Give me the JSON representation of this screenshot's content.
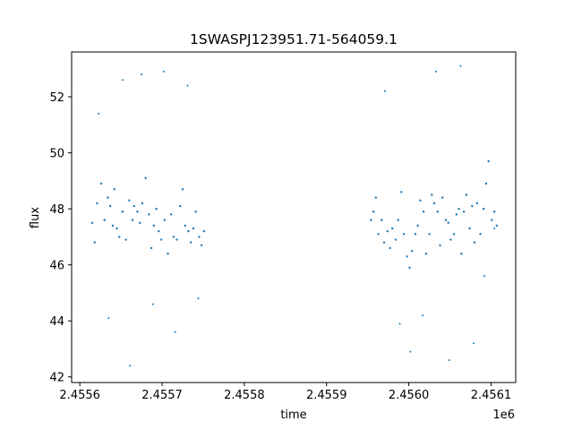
{
  "chart_data": {
    "type": "scatter",
    "title": "1SWASPJ123951.71-564059.1",
    "xlabel": "time",
    "ylabel": "flux",
    "x_offset_label": "1e6",
    "xlim": [
      2455590,
      2456130
    ],
    "ylim": [
      41.8,
      53.6
    ],
    "x_ticks": [
      2455600,
      2455700,
      2455800,
      2455900,
      2456000,
      2456100
    ],
    "x_tick_labels": [
      "2.4556",
      "2.4557",
      "2.4558",
      "2.4559",
      "2.4560",
      "2.4561"
    ],
    "y_ticks": [
      42,
      44,
      46,
      48,
      50,
      52
    ],
    "y_tick_labels": [
      "42",
      "44",
      "46",
      "48",
      "50",
      "52"
    ],
    "grid": false,
    "marker_color": "#1f77b4",
    "series": [
      {
        "name": "",
        "x": [
          2455615,
          2455618,
          2455621,
          2455626,
          2455630,
          2455634,
          2455637,
          2455640,
          2455642,
          2455645,
          2455648,
          2455652,
          2455656,
          2455660,
          2455664,
          2455666,
          2455670,
          2455673,
          2455676,
          2455680,
          2455684,
          2455687,
          2455690,
          2455693,
          2455696,
          2455699,
          2455703,
          2455707,
          2455711,
          2455714,
          2455718,
          2455722,
          2455725,
          2455728,
          2455732,
          2455735,
          2455738,
          2455741,
          2455745,
          2455748,
          2455751,
          2455954,
          2455957,
          2455960,
          2455963,
          2455967,
          2455970,
          2455974,
          2455977,
          2455980,
          2455984,
          2455987,
          2455991,
          2455994,
          2455998,
          2456001,
          2456004,
          2456008,
          2456011,
          2456014,
          2456018,
          2456021,
          2456025,
          2456028,
          2456031,
          2456035,
          2456038,
          2456041,
          2456045,
          2456048,
          2456051,
          2456055,
          2456058,
          2456061,
          2456064,
          2456067,
          2456070,
          2456074,
          2456077,
          2456080,
          2456083,
          2456087,
          2456091,
          2456094,
          2456097,
          2456101,
          2456104,
          2456107
        ],
        "y": [
          47.5,
          46.8,
          48.2,
          48.9,
          47.6,
          48.4,
          48.1,
          47.4,
          48.7,
          47.3,
          47.0,
          47.9,
          46.9,
          48.3,
          47.6,
          48.1,
          47.9,
          47.5,
          48.2,
          49.1,
          47.8,
          46.6,
          47.4,
          48.0,
          47.2,
          46.9,
          47.6,
          46.4,
          47.8,
          47.0,
          46.9,
          48.1,
          48.7,
          47.4,
          47.2,
          46.8,
          47.3,
          47.9,
          47.0,
          46.7,
          47.2,
          47.6,
          47.9,
          48.4,
          47.1,
          47.6,
          46.8,
          47.2,
          46.6,
          47.3,
          46.9,
          47.6,
          48.6,
          47.1,
          46.3,
          45.9,
          46.5,
          47.1,
          47.4,
          48.3,
          47.9,
          46.4,
          47.1,
          48.5,
          48.2,
          47.9,
          46.7,
          48.4,
          47.6,
          47.5,
          46.9,
          47.1,
          47.8,
          48.0,
          46.4,
          47.9,
          48.5,
          47.3,
          48.1,
          46.8,
          48.2,
          47.1,
          48.0,
          48.9,
          49.7,
          47.6,
          47.9,
          47.4
        ],
        "x_sparse": [
          2455623,
          2455635,
          2455652,
          2455661,
          2455675,
          2455689,
          2455702,
          2455716,
          2455731,
          2455744,
          2455971,
          2455989,
          2456002,
          2456017,
          2456033,
          2456049,
          2456063,
          2456079,
          2456092,
          2456104
        ],
        "y_sparse": [
          51.4,
          44.1,
          52.6,
          42.4,
          52.8,
          44.6,
          52.9,
          43.6,
          52.4,
          44.8,
          52.2,
          43.9,
          42.9,
          44.2,
          52.9,
          42.6,
          53.1,
          43.2,
          45.6,
          47.3
        ]
      }
    ]
  }
}
